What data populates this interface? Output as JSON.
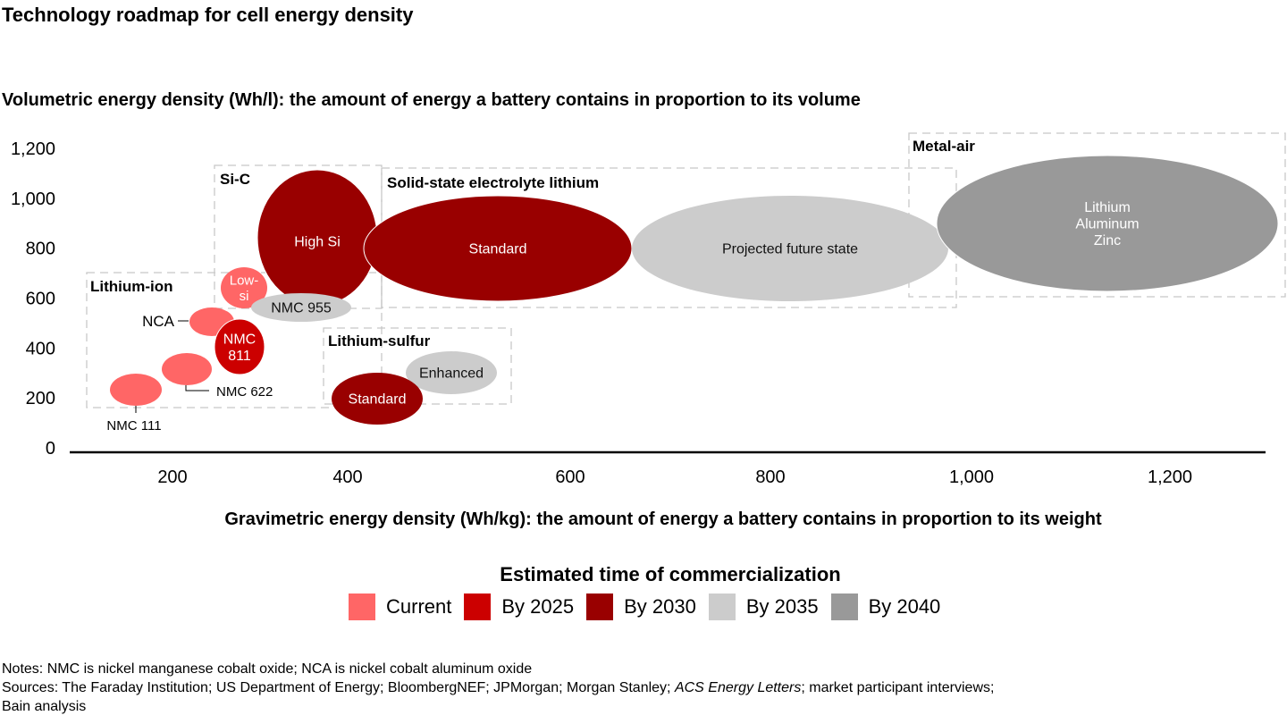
{
  "title": "Technology roadmap for cell energy density",
  "chart_data": {
    "type": "bubble",
    "title": "Technology roadmap for cell energy density",
    "ylabel": "Volumetric energy density (Wh/l): the amount of energy a battery contains in proportion to its volume",
    "xlabel": "Gravimetric energy density (Wh/kg): the amount of energy a battery contains in proportion to its weight",
    "x_ticks": [
      "200",
      "400",
      "600",
      "800",
      "1,000",
      "1,200"
    ],
    "x_tick_values": [
      200,
      400,
      600,
      800,
      1000,
      1200
    ],
    "y_ticks": [
      "0",
      "200",
      "400",
      "600",
      "800",
      "1,000",
      "1,200"
    ],
    "y_tick_values": [
      0,
      200,
      400,
      600,
      800,
      1000,
      1200
    ],
    "xlim": [
      100,
      1300
    ],
    "ylim": [
      0,
      1200
    ],
    "grid": false,
    "legend": {
      "title": "Estimated time of commercialization",
      "position": "bottom",
      "entries": [
        {
          "key": "current",
          "label": "Current",
          "color": "#FF6666"
        },
        {
          "key": "by2025",
          "label": "By 2025",
          "color": "#CC0000"
        },
        {
          "key": "by2030",
          "label": "By 2030",
          "color": "#990000"
        },
        {
          "key": "by2035",
          "label": "By 2035",
          "color": "#CCCCCC"
        },
        {
          "key": "by2040",
          "label": "By 2040",
          "color": "#999999"
        }
      ]
    },
    "groups": [
      {
        "name": "Lithium-ion"
      },
      {
        "name": "Si-C"
      },
      {
        "name": "Solid-state electrolyte lithium"
      },
      {
        "name": "Lithium-sulfur"
      },
      {
        "name": "Metal-air"
      }
    ],
    "bubbles": [
      {
        "id": "nmc111",
        "label": "NMC 111",
        "group": "Lithium-ion",
        "era": "current",
        "x_range": [
          140,
          190
        ],
        "y_range": [
          170,
          290
        ],
        "label_outside": true
      },
      {
        "id": "nmc622",
        "label": "NMC 622",
        "group": "Lithium-ion",
        "era": "current",
        "x_range": [
          185,
          240
        ],
        "y_range": [
          250,
          370
        ],
        "label_outside": true
      },
      {
        "id": "nca",
        "label": "NCA",
        "group": "Lithium-ion",
        "era": "current",
        "x_range": [
          220,
          270
        ],
        "y_range": [
          450,
          560
        ],
        "label_outside": true
      },
      {
        "id": "nmc811",
        "label": "NMC 811",
        "group": "Lithium-ion",
        "era": "by2025",
        "x_range": [
          240,
          295
        ],
        "y_range": [
          300,
          500
        ],
        "label_outside": false
      },
      {
        "id": "lowsi",
        "label": "Low-si",
        "group": "Si-C",
        "era": "current",
        "x_range": [
          250,
          300
        ],
        "y_range": [
          560,
          700
        ],
        "label_outside": false
      },
      {
        "id": "highsi",
        "label": "High Si",
        "group": "Si-C",
        "era": "by2030",
        "x_range": [
          290,
          420
        ],
        "y_range": [
          560,
          1110
        ],
        "label_outside": false
      },
      {
        "id": "nmc955",
        "label": "NMC 955",
        "group": "Si-C",
        "era": "by2035",
        "x_range": [
          280,
          380
        ],
        "y_range": [
          520,
          610
        ],
        "label_outside": false
      },
      {
        "id": "sse_standard",
        "label": "Standard",
        "group": "Solid-state electrolyte lithium",
        "era": "by2030",
        "x_range": [
          410,
          660
        ],
        "y_range": [
          590,
          1010
        ],
        "label_outside": false
      },
      {
        "id": "sse_future",
        "label": "Projected future state",
        "group": "Solid-state electrolyte lithium",
        "era": "by2035",
        "x_range": [
          660,
          990
        ],
        "y_range": [
          590,
          1010
        ],
        "label_outside": false
      },
      {
        "id": "lis_standard",
        "label": "Standard",
        "group": "Lithium-sulfur",
        "era": "by2030",
        "x_range": [
          365,
          460
        ],
        "y_range": [
          130,
          300
        ],
        "label_outside": false
      },
      {
        "id": "lis_enhanced",
        "label": "Enhanced",
        "group": "Lithium-sulfur",
        "era": "by2035",
        "x_range": [
          440,
          530
        ],
        "y_range": [
          250,
          390
        ],
        "label_outside": false
      },
      {
        "id": "metalair",
        "label": "Lithium Aluminum Zinc",
        "label_lines": [
          "Lithium",
          "Aluminum",
          "Zinc"
        ],
        "group": "Metal-air",
        "era": "by2040",
        "x_range": [
          960,
          1330
        ],
        "y_range": [
          630,
          1120
        ],
        "label_outside": false
      }
    ]
  },
  "legend_title": "Estimated time of commercialization",
  "notes": {
    "line1": "Notes: NMC is nickel manganese cobalt oxide; NCA is nickel cobalt aluminum oxide",
    "sources_prefix": "Sources: The Faraday Institution; US Department of Energy; BloombergNEF; JPMorgan; Morgan Stanley; ",
    "sources_italic": "ACS Energy Letters",
    "sources_suffix": "; market participant interviews;",
    "line3": "Bain analysis"
  }
}
